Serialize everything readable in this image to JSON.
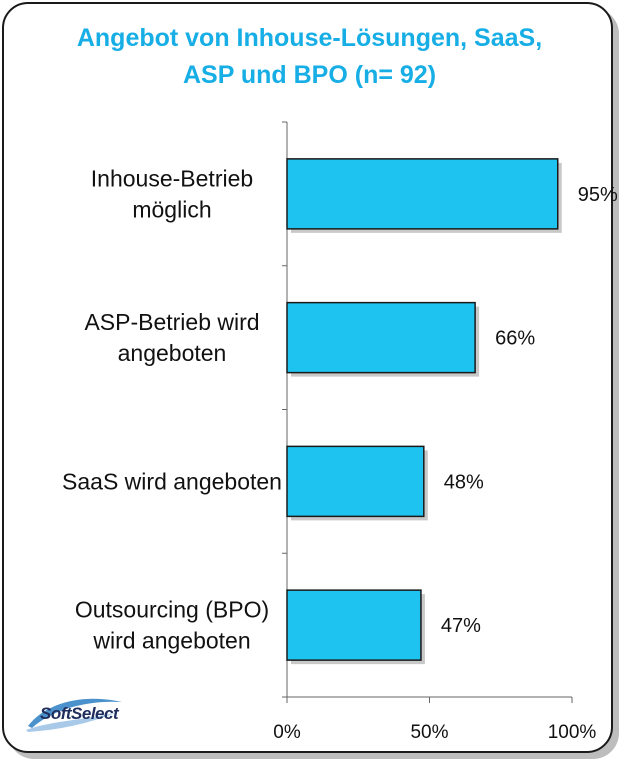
{
  "chart_data": {
    "type": "bar",
    "orientation": "horizontal",
    "title_lines": [
      "Angebot von Inhouse-Lösungen, SaaS,",
      "ASP und BPO (n= 92)"
    ],
    "categories": [
      [
        "Inhouse-Betrieb",
        "möglich"
      ],
      [
        "ASP-Betrieb wird",
        "angeboten"
      ],
      [
        "SaaS wird angeboten"
      ],
      [
        "Outsourcing (BPO)",
        "wird angeboten"
      ]
    ],
    "values": [
      95,
      66,
      48,
      47
    ],
    "value_labels": [
      "95%",
      "66%",
      "48%",
      "47%"
    ],
    "xlim": [
      0,
      100
    ],
    "x_ticks": [
      0,
      50,
      100
    ],
    "x_tick_labels": [
      "0%",
      "50%",
      "100%"
    ],
    "grid": false,
    "bar_color": "#1ec3f0",
    "bar_edge_color": "#1a1a1a",
    "title_color": "#17aee6"
  },
  "logo": {
    "text": "SoftSelect",
    "icon": "swoosh-logo-icon"
  }
}
